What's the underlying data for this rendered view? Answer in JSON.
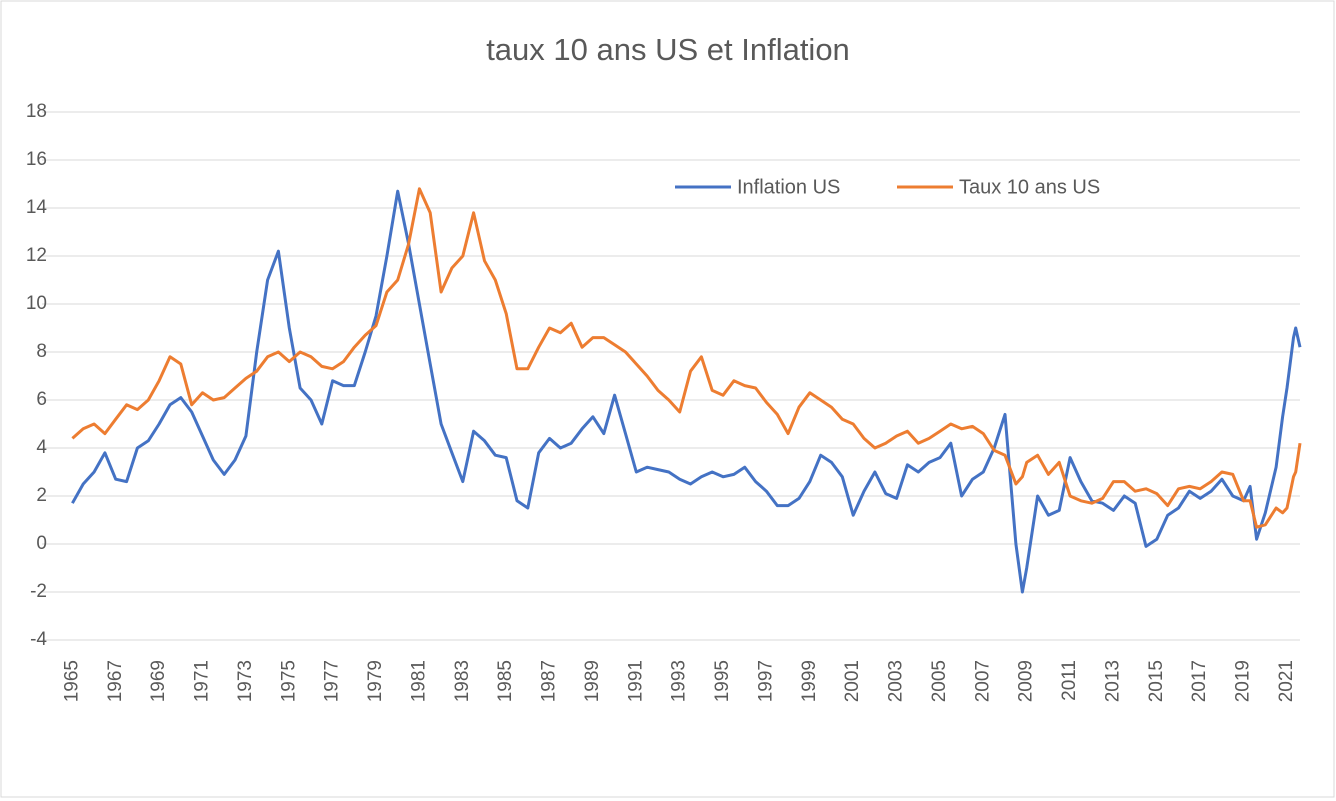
{
  "chart_data": {
    "type": "line",
    "title": "taux 10 ans US et Inflation",
    "x": [
      1965,
      1965.5,
      1966,
      1966.5,
      1967,
      1967.5,
      1968,
      1968.5,
      1969,
      1969.5,
      1970,
      1970.5,
      1971,
      1971.5,
      1972,
      1972.5,
      1973,
      1973.5,
      1974,
      1974.5,
      1975,
      1975.5,
      1976,
      1976.5,
      1977,
      1977.5,
      1978,
      1978.5,
      1979,
      1979.5,
      1980,
      1980.5,
      1981,
      1981.5,
      1982,
      1982.5,
      1983,
      1983.5,
      1984,
      1984.5,
      1985,
      1985.5,
      1986,
      1986.5,
      1987,
      1987.5,
      1988,
      1988.5,
      1989,
      1989.5,
      1990,
      1990.5,
      1991,
      1991.5,
      1992,
      1992.5,
      1993,
      1993.5,
      1994,
      1994.5,
      1995,
      1995.5,
      1996,
      1996.5,
      1997,
      1997.5,
      1998,
      1998.5,
      1999,
      1999.5,
      2000,
      2000.5,
      2001,
      2001.5,
      2002,
      2002.5,
      2003,
      2003.5,
      2004,
      2004.5,
      2005,
      2005.5,
      2006,
      2006.5,
      2007,
      2007.5,
      2008,
      2008.5,
      2008.8,
      2009,
      2009.5,
      2010,
      2010.5,
      2011,
      2011.5,
      2012,
      2012.5,
      2013,
      2013.5,
      2014,
      2014.5,
      2015,
      2015.5,
      2016,
      2016.5,
      2017,
      2017.5,
      2018,
      2018.5,
      2019,
      2019.3,
      2019.6,
      2020,
      2020.5,
      2020.8,
      2021,
      2021.3,
      2021.4,
      2021.6
    ],
    "series": [
      {
        "name": "Inflation US",
        "color": "#4472c4",
        "values": [
          1.7,
          2.5,
          3.0,
          3.8,
          2.7,
          2.6,
          4.0,
          4.3,
          5.0,
          5.8,
          6.1,
          5.5,
          4.5,
          3.5,
          2.9,
          3.5,
          4.5,
          8.0,
          11.0,
          12.2,
          9.0,
          6.5,
          6.0,
          5.0,
          6.8,
          6.6,
          6.6,
          8.0,
          9.5,
          12.0,
          14.7,
          12.5,
          10.0,
          7.5,
          5.0,
          3.8,
          2.6,
          4.7,
          4.3,
          3.7,
          3.6,
          1.8,
          1.5,
          3.8,
          4.4,
          4.0,
          4.2,
          4.8,
          5.3,
          4.6,
          6.2,
          4.6,
          3.0,
          3.2,
          3.1,
          3.0,
          2.7,
          2.5,
          2.8,
          3.0,
          2.8,
          2.9,
          3.2,
          2.6,
          2.2,
          1.6,
          1.6,
          1.9,
          2.6,
          3.7,
          3.4,
          2.8,
          1.2,
          2.2,
          3.0,
          2.1,
          1.9,
          3.3,
          3.0,
          3.4,
          3.6,
          4.2,
          2.0,
          2.7,
          3.0,
          4.0,
          5.4,
          0.0,
          -2.0,
          -1.0,
          2.0,
          1.2,
          1.4,
          3.6,
          2.6,
          1.8,
          1.7,
          1.4,
          2.0,
          1.7,
          -0.1,
          0.2,
          1.2,
          1.5,
          2.2,
          1.9,
          2.2,
          2.7,
          2.0,
          1.8,
          2.4,
          0.2,
          1.3,
          3.2,
          5.3,
          6.5,
          8.6,
          9.0,
          8.2
        ]
      },
      {
        "name": "Taux 10 ans US",
        "color": "#ed7d31",
        "values": [
          4.4,
          4.8,
          5.0,
          4.6,
          5.2,
          5.8,
          5.6,
          6.0,
          6.8,
          7.8,
          7.5,
          5.8,
          6.3,
          6.0,
          6.1,
          6.5,
          6.9,
          7.2,
          7.8,
          8.0,
          7.6,
          8.0,
          7.8,
          7.4,
          7.3,
          7.6,
          8.2,
          8.7,
          9.1,
          10.5,
          11.0,
          12.5,
          14.8,
          13.8,
          10.5,
          11.5,
          12.0,
          13.8,
          11.8,
          11.0,
          9.6,
          7.3,
          7.3,
          8.2,
          9.0,
          8.8,
          9.2,
          8.2,
          8.6,
          8.6,
          8.3,
          8.0,
          7.5,
          7.0,
          6.4,
          6.0,
          5.5,
          7.2,
          7.8,
          6.4,
          6.2,
          6.8,
          6.6,
          6.5,
          5.9,
          5.4,
          4.6,
          5.7,
          6.3,
          6.0,
          5.7,
          5.2,
          5.0,
          4.4,
          4.0,
          4.2,
          4.5,
          4.7,
          4.2,
          4.4,
          4.7,
          5.0,
          4.8,
          4.9,
          4.6,
          3.9,
          3.7,
          2.5,
          2.8,
          3.4,
          3.7,
          2.9,
          3.4,
          2.0,
          1.8,
          1.7,
          1.9,
          2.6,
          2.6,
          2.2,
          2.3,
          2.1,
          1.6,
          2.3,
          2.4,
          2.3,
          2.6,
          3.0,
          2.9,
          1.8,
          1.8,
          0.7,
          0.8,
          1.5,
          1.3,
          1.5,
          2.8,
          3.0,
          4.2
        ]
      }
    ],
    "xlim": [
      1963.6,
      2021.6
    ],
    "xticks": [
      1965,
      1967,
      1969,
      1971,
      1973,
      1975,
      1977,
      1979,
      1981,
      1983,
      1985,
      1987,
      1989,
      1991,
      1993,
      1995,
      1997,
      1999,
      2001,
      2003,
      2005,
      2007,
      2009,
      2011,
      2013,
      2015,
      2017,
      2019,
      2021
    ],
    "ylim": [
      -4,
      18
    ],
    "yticks": [
      -4,
      -2,
      0,
      2,
      4,
      6,
      8,
      10,
      12,
      14,
      16,
      18
    ],
    "grid": true
  }
}
